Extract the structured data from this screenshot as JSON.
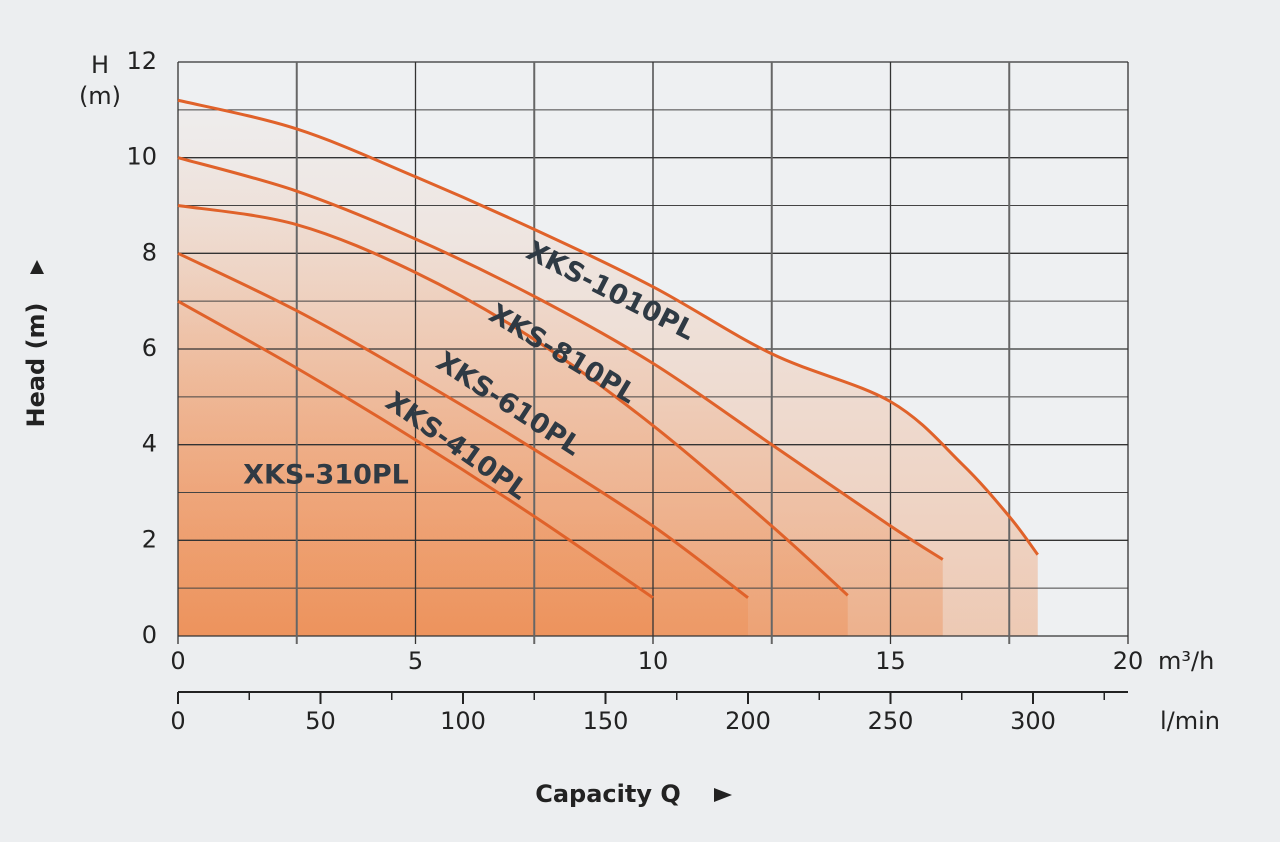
{
  "chart_data": {
    "type": "line",
    "y_label": "Head (m)",
    "y_unit_top": "H",
    "y_unit": "(m)",
    "x_label": "Capacity Q",
    "x_unit": "m³/h",
    "x2_unit": "l/min",
    "xlim": [
      0,
      20
    ],
    "xticks": [
      0,
      5,
      10,
      15,
      20
    ],
    "x_minor_ticks": [
      2.5,
      7.5,
      12.5,
      17.5
    ],
    "ylim": [
      0,
      12
    ],
    "yticks": [
      0,
      2,
      4,
      6,
      8,
      10,
      12
    ],
    "y_minor_ticks": [
      1,
      3,
      5,
      7,
      9,
      11
    ],
    "x2lim": [
      0,
      333.333
    ],
    "x2ticks": [
      0,
      50,
      100,
      150,
      200,
      250,
      300
    ],
    "x2_minor_ticks": [
      25,
      75,
      125,
      175,
      225,
      275,
      325
    ],
    "grid": true,
    "line_color": "#e0622a",
    "series": [
      {
        "name": "XKS-1010PL",
        "x": [
          0,
          2.5,
          5,
          7.5,
          10,
          12.5,
          15,
          16.5,
          17.5,
          18.1
        ],
        "values": [
          11.2,
          10.6,
          9.6,
          8.5,
          7.3,
          5.9,
          4.9,
          3.6,
          2.5,
          1.7
        ]
      },
      {
        "name": "XKS-810PL",
        "x": [
          0,
          2.5,
          5,
          7.5,
          10,
          12.5,
          15,
          16.1
        ],
        "values": [
          10,
          9.3,
          8.3,
          7.1,
          5.7,
          4.0,
          2.3,
          1.6
        ]
      },
      {
        "name": "XKS-610PL",
        "x": [
          0,
          2.5,
          5,
          7.5,
          10,
          12.5,
          14.1
        ],
        "values": [
          9,
          8.6,
          7.6,
          6.2,
          4.4,
          2.3,
          0.85
        ]
      },
      {
        "name": "XKS-410PL",
        "x": [
          0,
          2.5,
          5,
          7.5,
          10,
          12
        ],
        "values": [
          8,
          6.8,
          5.4,
          3.9,
          2.3,
          0.8
        ]
      },
      {
        "name": "XKS-310PL",
        "x": [
          0,
          2.5,
          5,
          7.5,
          10
        ],
        "values": [
          7,
          5.6,
          4.1,
          2.5,
          0.8
        ]
      }
    ]
  }
}
